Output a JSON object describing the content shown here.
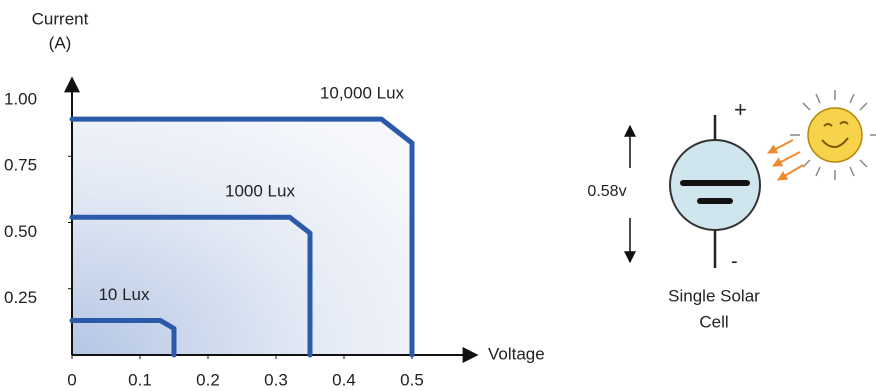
{
  "chart_data": {
    "type": "line",
    "y_label": [
      "Current",
      "(A)"
    ],
    "x_label": "Voltage",
    "xlim": [
      0,
      0.5
    ],
    "ylim": [
      0,
      1
    ],
    "xticks": [
      0,
      0.1,
      0.2,
      0.3,
      0.4,
      0.5
    ],
    "yticks": [
      {
        "value": 0.25,
        "label": "0.25"
      },
      {
        "value": 0.5,
        "label": "0.50"
      },
      {
        "value": 0.75,
        "label": "0.75"
      },
      {
        "value": 1,
        "label": "1.00"
      }
    ],
    "series": [
      {
        "name": "10 Lux",
        "color": "#2b5ba8",
        "x": [
          0,
          0.13,
          0.15,
          0.15
        ],
        "values": [
          0.13,
          0.13,
          0.1,
          0
        ]
      },
      {
        "name": "1000 Lux",
        "color": "#2b5ba8",
        "x": [
          0,
          0.32,
          0.35,
          0.35
        ],
        "values": [
          0.52,
          0.52,
          0.46,
          0
        ]
      },
      {
        "name": "10,000 Lux",
        "color": "#2b5ba8",
        "x": [
          0,
          0.455,
          0.5,
          0.5
        ],
        "values": [
          0.89,
          0.89,
          0.8,
          0
        ]
      }
    ]
  },
  "diagram": {
    "voltage_label": "0.58v",
    "plus": "+",
    "minus": "-",
    "caption": [
      "Single Solar",
      "Cell"
    ]
  }
}
